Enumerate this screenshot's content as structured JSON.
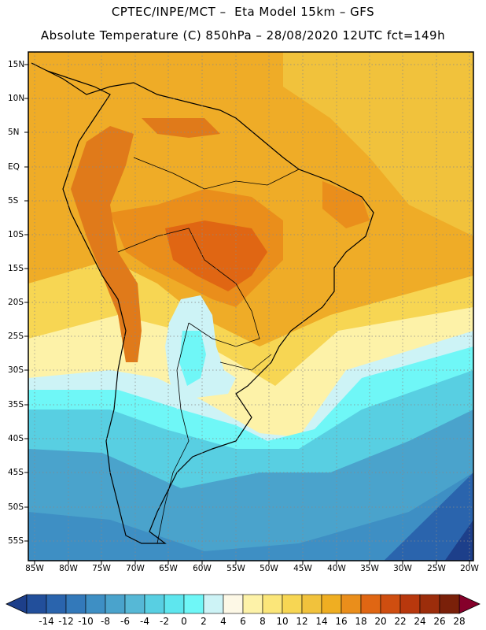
{
  "header": {
    "line1": "CPTEC/INPE/MCT –  Eta Model 15km – GFS",
    "line2": "Absolute Temperature (C) 850hPa – 28/08/2020 12UTC fct=149h"
  },
  "axes": {
    "lat_labels": [
      "15N",
      "10N",
      "5N",
      "EQ",
      "5S",
      "10S",
      "15S",
      "20S",
      "25S",
      "30S",
      "35S",
      "40S",
      "45S",
      "50S",
      "55S"
    ],
    "lon_labels": [
      "85W",
      "80W",
      "75W",
      "70W",
      "65W",
      "60W",
      "55W",
      "50W",
      "45W",
      "40W",
      "35W",
      "30W",
      "25W",
      "20W"
    ]
  },
  "colorbar": {
    "labels": [
      "-14",
      "-12",
      "-10",
      "-8",
      "-6",
      "-4",
      "-2",
      "0",
      "2",
      "4",
      "6",
      "8",
      "10",
      "12",
      "14",
      "16",
      "18",
      "20",
      "22",
      "24",
      "26",
      "28"
    ],
    "colors": [
      "#1d3f8a",
      "#224f9b",
      "#2a64ad",
      "#3379ba",
      "#3e8fc4",
      "#4aa3cc",
      "#56b8d6",
      "#58cfe2",
      "#5ee6ee",
      "#6ff7f7",
      "#cdf3f6",
      "#fdf8e6",
      "#fdf2a8",
      "#fbe679",
      "#f7d653",
      "#f1c23c",
      "#efae22",
      "#ea8e1b",
      "#e06613",
      "#cf4e10",
      "#b8380d",
      "#9c2d0b",
      "#7a2009",
      "#85002a"
    ]
  },
  "map": {
    "ocean_color": "#efac27",
    "land_hot_color": "#e07a1a"
  }
}
